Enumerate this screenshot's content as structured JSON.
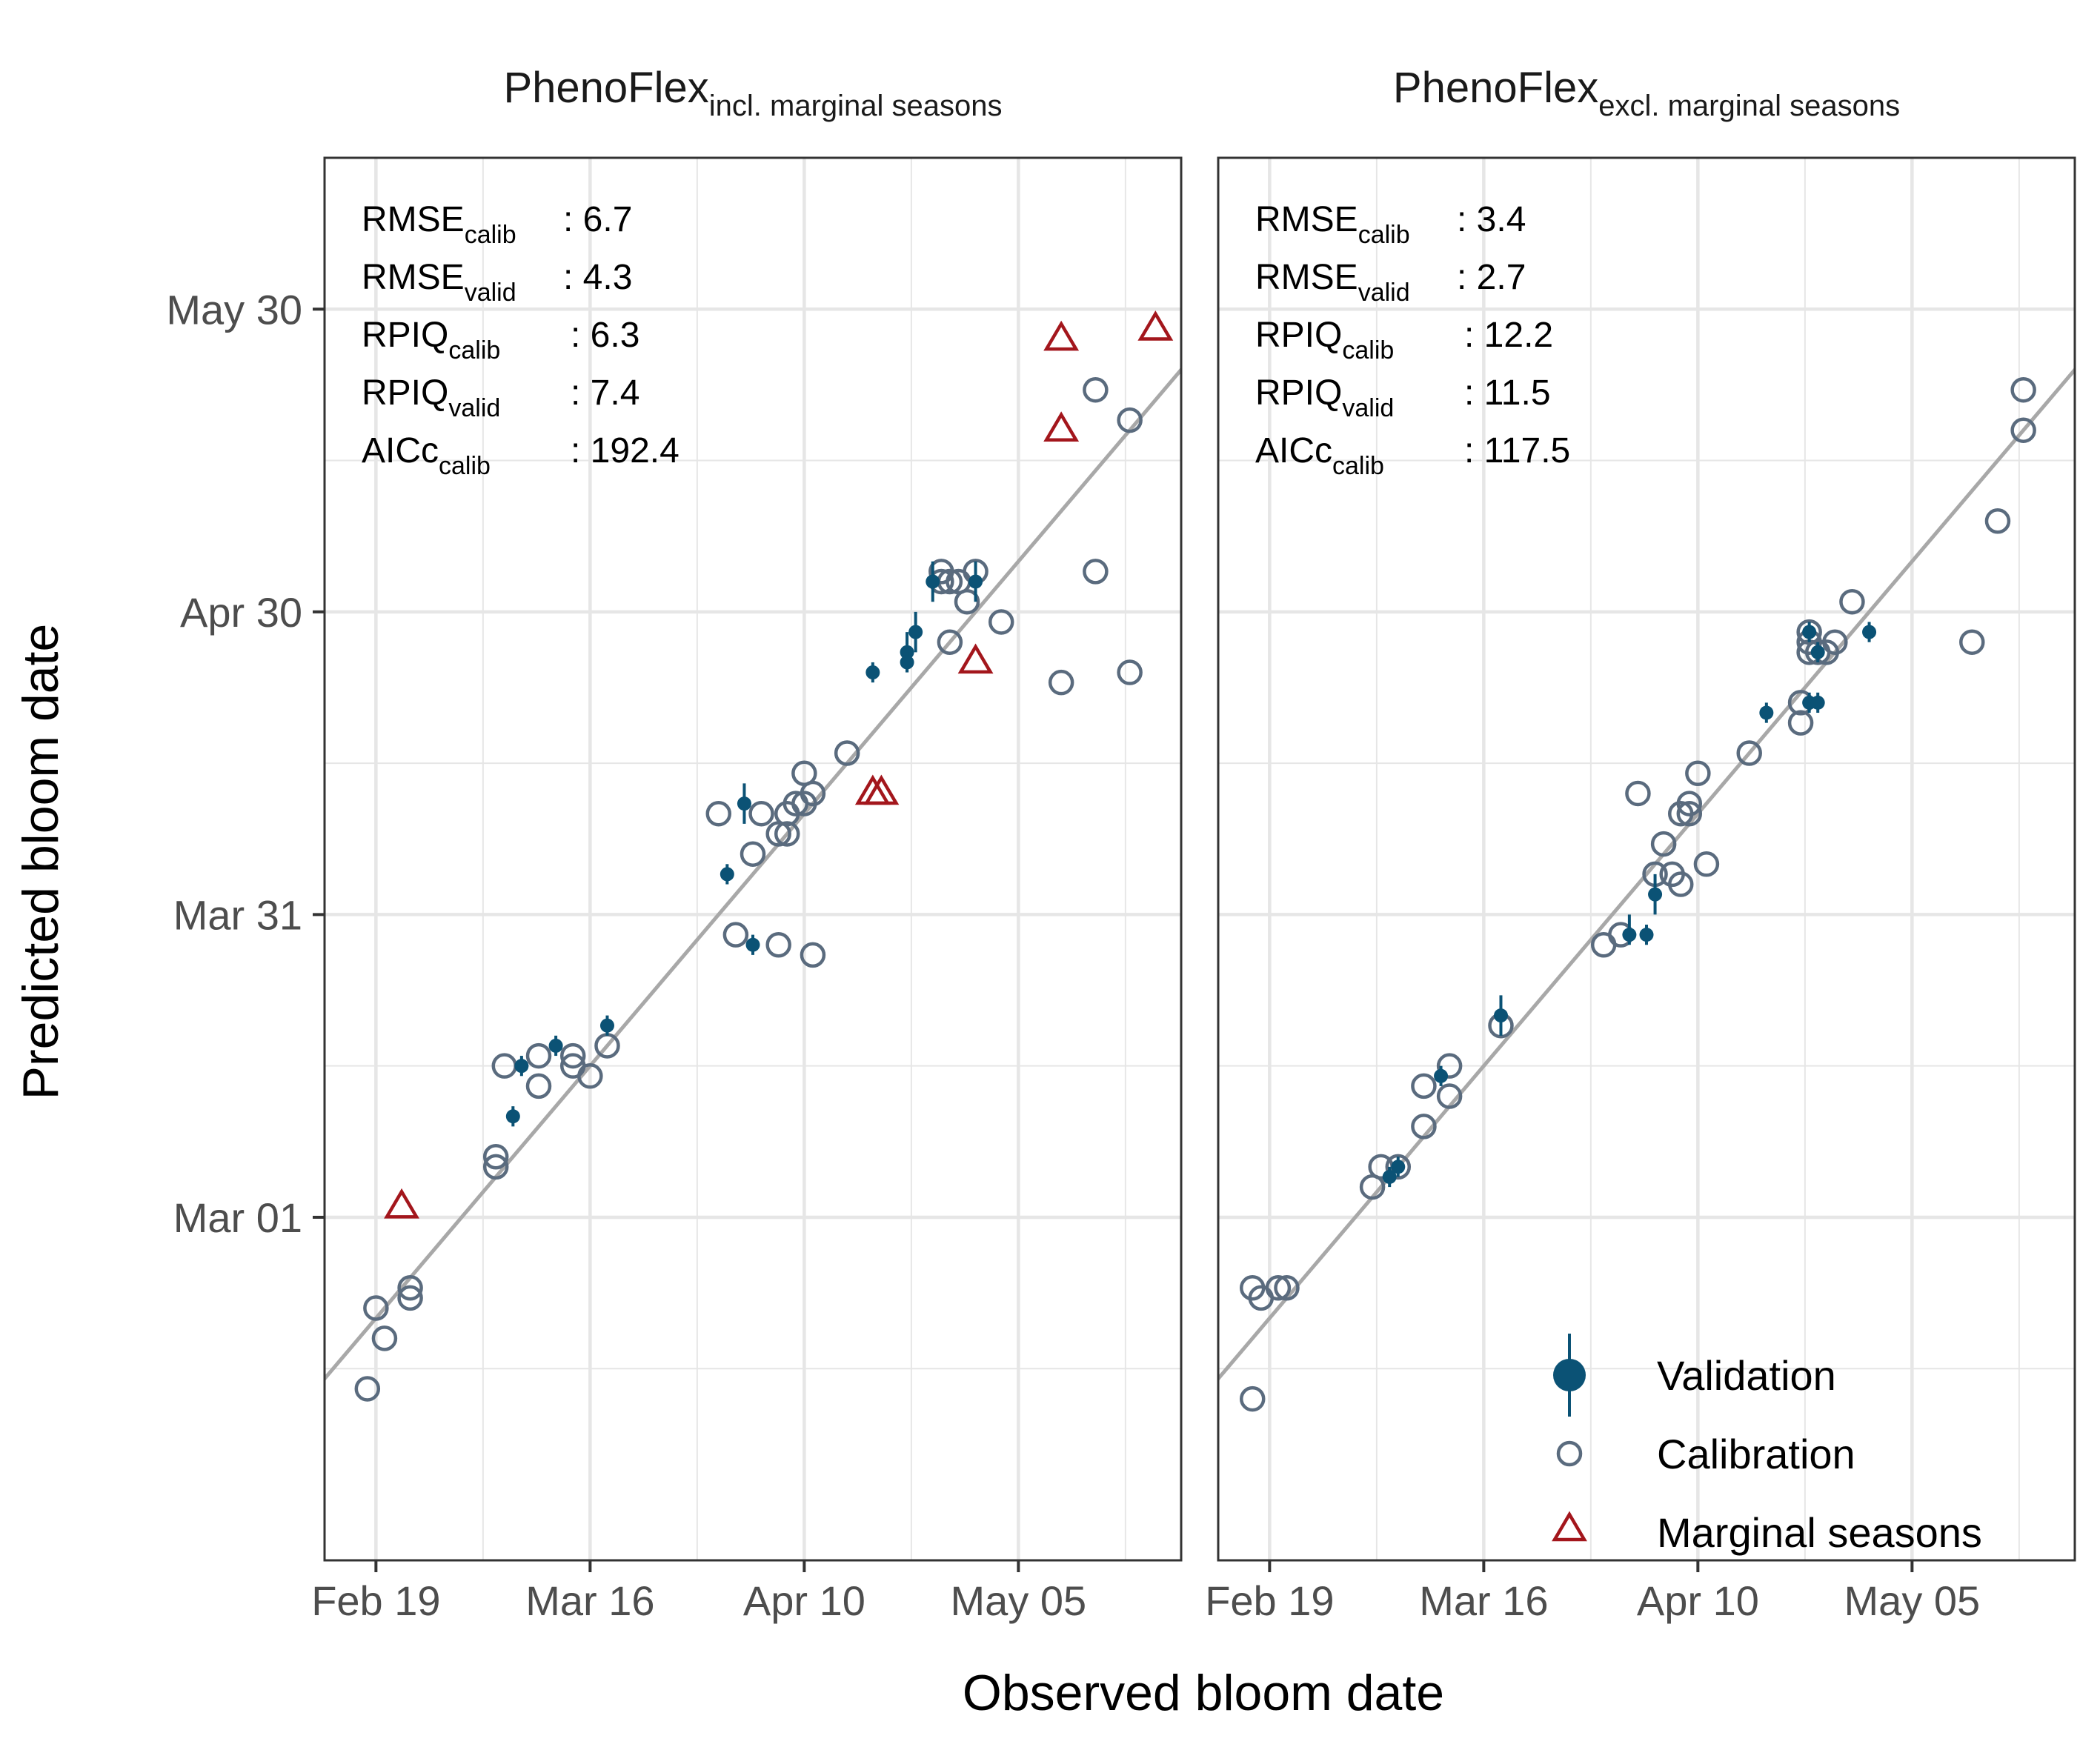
{
  "figure": {
    "xlabel": "Observed bloom date",
    "ylabel": "Predicted bloom date"
  },
  "chart_data": [
    {
      "type": "scatter",
      "title_main": "PhenoFlex",
      "title_sub": "incl. marginal seasons",
      "x_ticks": [
        "Feb 19",
        "Mar 16",
        "Apr 10",
        "May 05"
      ],
      "y_ticks": [
        "Mar 01",
        "Mar 31",
        "Apr 30",
        "May 30"
      ],
      "xlim": [
        "2023-02-13",
        "2023-05-24"
      ],
      "ylim": [
        "2023-01-26",
        "2023-06-14"
      ],
      "stats": [
        {
          "base": "RMSE",
          "sub": "calib",
          "value": ": 6.7"
        },
        {
          "base": "RMSE",
          "sub": "valid",
          "value": ": 4.3"
        },
        {
          "base": "RPIQ",
          "sub": "calib",
          "value": ": 6.3"
        },
        {
          "base": "RPIQ",
          "sub": "valid",
          "value": ": 7.4"
        },
        {
          "base": "AICc",
          "sub": "calib",
          "value": ": 192.4"
        }
      ],
      "series": [
        {
          "name": "Calibration",
          "points": [
            [
              "2023-02-18",
              "2023-02-12"
            ],
            [
              "2023-02-19",
              "2023-02-20"
            ],
            [
              "2023-02-20",
              "2023-02-17"
            ],
            [
              "2023-02-23",
              "2023-02-21"
            ],
            [
              "2023-02-23",
              "2023-02-22"
            ],
            [
              "2023-03-05",
              "2023-03-06"
            ],
            [
              "2023-03-05",
              "2023-03-07"
            ],
            [
              "2023-03-06",
              "2023-03-16"
            ],
            [
              "2023-03-10",
              "2023-03-14"
            ],
            [
              "2023-03-10",
              "2023-03-17"
            ],
            [
              "2023-03-14",
              "2023-03-16"
            ],
            [
              "2023-03-14",
              "2023-03-17"
            ],
            [
              "2023-03-16",
              "2023-03-15"
            ],
            [
              "2023-03-18",
              "2023-03-18"
            ],
            [
              "2023-03-31",
              "2023-04-10"
            ],
            [
              "2023-04-02",
              "2023-03-29"
            ],
            [
              "2023-04-04",
              "2023-04-06"
            ],
            [
              "2023-04-05",
              "2023-04-10"
            ],
            [
              "2023-04-07",
              "2023-04-08"
            ],
            [
              "2023-04-07",
              "2023-03-28"
            ],
            [
              "2023-04-08",
              "2023-04-08"
            ],
            [
              "2023-04-08",
              "2023-04-10"
            ],
            [
              "2023-04-09",
              "2023-04-11"
            ],
            [
              "2023-04-10",
              "2023-04-11"
            ],
            [
              "2023-04-10",
              "2023-04-14"
            ],
            [
              "2023-04-11",
              "2023-04-12"
            ],
            [
              "2023-04-11",
              "2023-03-27"
            ],
            [
              "2023-04-15",
              "2023-04-16"
            ],
            [
              "2023-04-26",
              "2023-05-03"
            ],
            [
              "2023-04-26",
              "2023-05-04"
            ],
            [
              "2023-04-27",
              "2023-05-03"
            ],
            [
              "2023-04-27",
              "2023-04-27"
            ],
            [
              "2023-04-28",
              "2023-05-03"
            ],
            [
              "2023-04-29",
              "2023-05-01"
            ],
            [
              "2023-04-30",
              "2023-05-04"
            ],
            [
              "2023-05-03",
              "2023-04-29"
            ],
            [
              "2023-05-10",
              "2023-04-23"
            ],
            [
              "2023-05-14",
              "2023-05-22"
            ],
            [
              "2023-05-14",
              "2023-05-04"
            ],
            [
              "2023-05-18",
              "2023-05-19"
            ],
            [
              "2023-05-18",
              "2023-04-24"
            ]
          ]
        },
        {
          "name": "Validation",
          "points": [
            [
              "2023-03-07",
              "2023-03-11",
              "2023-03-10",
              "2023-03-12"
            ],
            [
              "2023-03-08",
              "2023-03-16",
              "2023-03-15",
              "2023-03-17"
            ],
            [
              "2023-03-12",
              "2023-03-18",
              "2023-03-17",
              "2023-03-19"
            ],
            [
              "2023-03-18",
              "2023-03-20",
              "2023-03-19",
              "2023-03-21"
            ],
            [
              "2023-04-01",
              "2023-04-04",
              "2023-04-03",
              "2023-04-05"
            ],
            [
              "2023-04-03",
              "2023-04-11",
              "2023-04-09",
              "2023-04-13"
            ],
            [
              "2023-04-04",
              "2023-03-28",
              "2023-03-27",
              "2023-03-29"
            ],
            [
              "2023-04-18",
              "2023-04-24",
              "2023-04-23",
              "2023-04-25"
            ],
            [
              "2023-04-22",
              "2023-04-26",
              "2023-04-24",
              "2023-04-28"
            ],
            [
              "2023-04-22",
              "2023-04-25",
              "2023-04-24",
              "2023-04-26"
            ],
            [
              "2023-04-23",
              "2023-04-28",
              "2023-04-26",
              "2023-04-30"
            ],
            [
              "2023-04-25",
              "2023-05-03",
              "2023-05-01",
              "2023-05-05"
            ],
            [
              "2023-04-30",
              "2023-05-03",
              "2023-05-01",
              "2023-05-05"
            ]
          ]
        },
        {
          "name": "Marginal seasons",
          "points": [
            [
              "2023-02-22",
              "2023-03-02"
            ],
            [
              "2023-04-18",
              "2023-04-12"
            ],
            [
              "2023-04-19",
              "2023-04-12"
            ],
            [
              "2023-04-30",
              "2023-04-25"
            ],
            [
              "2023-05-10",
              "2023-05-18"
            ],
            [
              "2023-05-10",
              "2023-05-27"
            ],
            [
              "2023-05-21",
              "2023-05-28"
            ]
          ]
        }
      ],
      "reference_line": "y = x",
      "legend": "none"
    },
    {
      "type": "scatter",
      "title_main": "PhenoFlex",
      "title_sub": "excl. marginal seasons",
      "x_ticks": [
        "Feb 19",
        "Mar 16",
        "Apr 10",
        "May 05"
      ],
      "y_ticks": [
        "Mar 01",
        "Mar 31",
        "Apr 30",
        "May 30"
      ],
      "xlim": [
        "2023-02-13",
        "2023-05-24"
      ],
      "ylim": [
        "2023-01-26",
        "2023-06-14"
      ],
      "stats": [
        {
          "base": "RMSE",
          "sub": "calib",
          "value": ": 3.4"
        },
        {
          "base": "RMSE",
          "sub": "valid",
          "value": ": 2.7"
        },
        {
          "base": "RPIQ",
          "sub": "calib",
          "value": ": 12.2"
        },
        {
          "base": "RPIQ",
          "sub": "valid",
          "value": ": 11.5"
        },
        {
          "base": "AICc",
          "sub": "calib",
          "value": ": 117.5"
        }
      ],
      "series": [
        {
          "name": "Calibration",
          "points": [
            [
              "2023-02-17",
              "2023-02-11"
            ],
            [
              "2023-02-17",
              "2023-02-22"
            ],
            [
              "2023-02-18",
              "2023-02-21"
            ],
            [
              "2023-02-20",
              "2023-02-22"
            ],
            [
              "2023-02-21",
              "2023-02-22"
            ],
            [
              "2023-03-03",
              "2023-03-04"
            ],
            [
              "2023-03-04",
              "2023-03-06"
            ],
            [
              "2023-03-06",
              "2023-03-06"
            ],
            [
              "2023-03-09",
              "2023-03-10"
            ],
            [
              "2023-03-09",
              "2023-03-14"
            ],
            [
              "2023-03-12",
              "2023-03-13"
            ],
            [
              "2023-03-12",
              "2023-03-16"
            ],
            [
              "2023-03-18",
              "2023-03-20"
            ],
            [
              "2023-03-30",
              "2023-03-28"
            ],
            [
              "2023-04-01",
              "2023-03-29"
            ],
            [
              "2023-04-03",
              "2023-04-12"
            ],
            [
              "2023-04-05",
              "2023-04-04"
            ],
            [
              "2023-04-06",
              "2023-04-07"
            ],
            [
              "2023-04-07",
              "2023-04-04"
            ],
            [
              "2023-04-08",
              "2023-04-03"
            ],
            [
              "2023-04-08",
              "2023-04-10"
            ],
            [
              "2023-04-09",
              "2023-04-11"
            ],
            [
              "2023-04-09",
              "2023-04-10"
            ],
            [
              "2023-04-10",
              "2023-04-14"
            ],
            [
              "2023-04-11",
              "2023-04-05"
            ],
            [
              "2023-04-16",
              "2023-04-16"
            ],
            [
              "2023-04-22",
              "2023-04-19"
            ],
            [
              "2023-04-22",
              "2023-04-21"
            ],
            [
              "2023-04-23",
              "2023-04-27"
            ],
            [
              "2023-04-23",
              "2023-04-26"
            ],
            [
              "2023-04-23",
              "2023-04-28"
            ],
            [
              "2023-04-24",
              "2023-04-26"
            ],
            [
              "2023-04-25",
              "2023-04-26"
            ],
            [
              "2023-04-26",
              "2023-04-27"
            ],
            [
              "2023-04-28",
              "2023-05-01"
            ],
            [
              "2023-05-12",
              "2023-04-27"
            ],
            [
              "2023-05-15",
              "2023-05-09"
            ],
            [
              "2023-05-18",
              "2023-05-18"
            ],
            [
              "2023-05-18",
              "2023-05-22"
            ]
          ]
        },
        {
          "name": "Validation",
          "points": [
            [
              "2023-03-05",
              "2023-03-05",
              "2023-03-04",
              "2023-03-06"
            ],
            [
              "2023-03-06",
              "2023-03-06",
              "2023-03-05",
              "2023-03-07"
            ],
            [
              "2023-03-11",
              "2023-03-15",
              "2023-03-14",
              "2023-03-16"
            ],
            [
              "2023-03-18",
              "2023-03-21",
              "2023-03-19",
              "2023-03-23"
            ],
            [
              "2023-04-02",
              "2023-03-29",
              "2023-03-28",
              "2023-03-31"
            ],
            [
              "2023-04-04",
              "2023-03-29",
              "2023-03-28",
              "2023-03-30"
            ],
            [
              "2023-04-05",
              "2023-04-02",
              "2023-03-31",
              "2023-04-04"
            ],
            [
              "2023-04-18",
              "2023-04-20",
              "2023-04-19",
              "2023-04-21"
            ],
            [
              "2023-04-23",
              "2023-04-21",
              "2023-04-20",
              "2023-04-22"
            ],
            [
              "2023-04-24",
              "2023-04-26",
              "2023-04-25",
              "2023-04-27"
            ],
            [
              "2023-04-24",
              "2023-04-21",
              "2023-04-20",
              "2023-04-22"
            ],
            [
              "2023-04-23",
              "2023-04-28",
              "2023-04-27",
              "2023-04-29"
            ],
            [
              "2023-04-30",
              "2023-04-28",
              "2023-04-27",
              "2023-04-29"
            ]
          ]
        }
      ],
      "reference_line": "y = x",
      "legend": "bottom-right"
    }
  ],
  "legend": {
    "validation": "Validation",
    "calibration": "Calibration",
    "marginal": "Marginal seasons"
  },
  "colors": {
    "validation": "#0b5275",
    "calibration": "#5a6b7e",
    "marginal": "#a3161c",
    "reference_line": "#a8a8a8",
    "grid": "#e6e6e6",
    "panel_border": "#333333",
    "axis_text": "#4d4d4d"
  }
}
